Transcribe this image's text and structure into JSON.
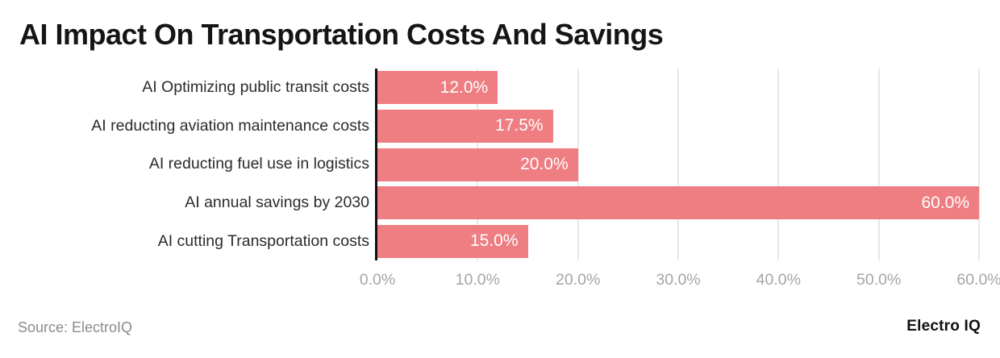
{
  "page": {
    "title": "AI Impact On Transportation Costs And Savings",
    "source_note": "Source: ElectroIQ",
    "brand": "Electro IQ"
  },
  "colors": {
    "bar": "#ee7e82",
    "grid": "#e8e8e8",
    "axis": "#111111",
    "tick_label": "#a5a5a5",
    "category_label": "#2b2b2b",
    "value_label": "#ffffff"
  },
  "chart_data": {
    "type": "bar",
    "orientation": "horizontal",
    "title": "AI Impact On Transportation Costs And Savings",
    "categories": [
      "AI Optimizing public transit costs",
      "AI reducting aviation maintenance costs",
      "AI reducting fuel use in logistics",
      "AI annual savings by 2030",
      "AI cutting Transportation costs"
    ],
    "values": [
      12.0,
      17.5,
      20.0,
      60.0,
      15.0
    ],
    "value_labels": [
      "12.0%",
      "17.5%",
      "20.0%",
      "60.0%",
      "15.0%"
    ],
    "xlabel": "",
    "ylabel": "",
    "xlim": [
      0,
      60
    ],
    "xticks": [
      0,
      10,
      20,
      30,
      40,
      50,
      60
    ],
    "xtick_labels": [
      "0.0%",
      "10.0%",
      "20.0%",
      "30.0%",
      "40.0%",
      "50.0%",
      "60.0%"
    ],
    "grid": "vertical",
    "legend": false
  }
}
